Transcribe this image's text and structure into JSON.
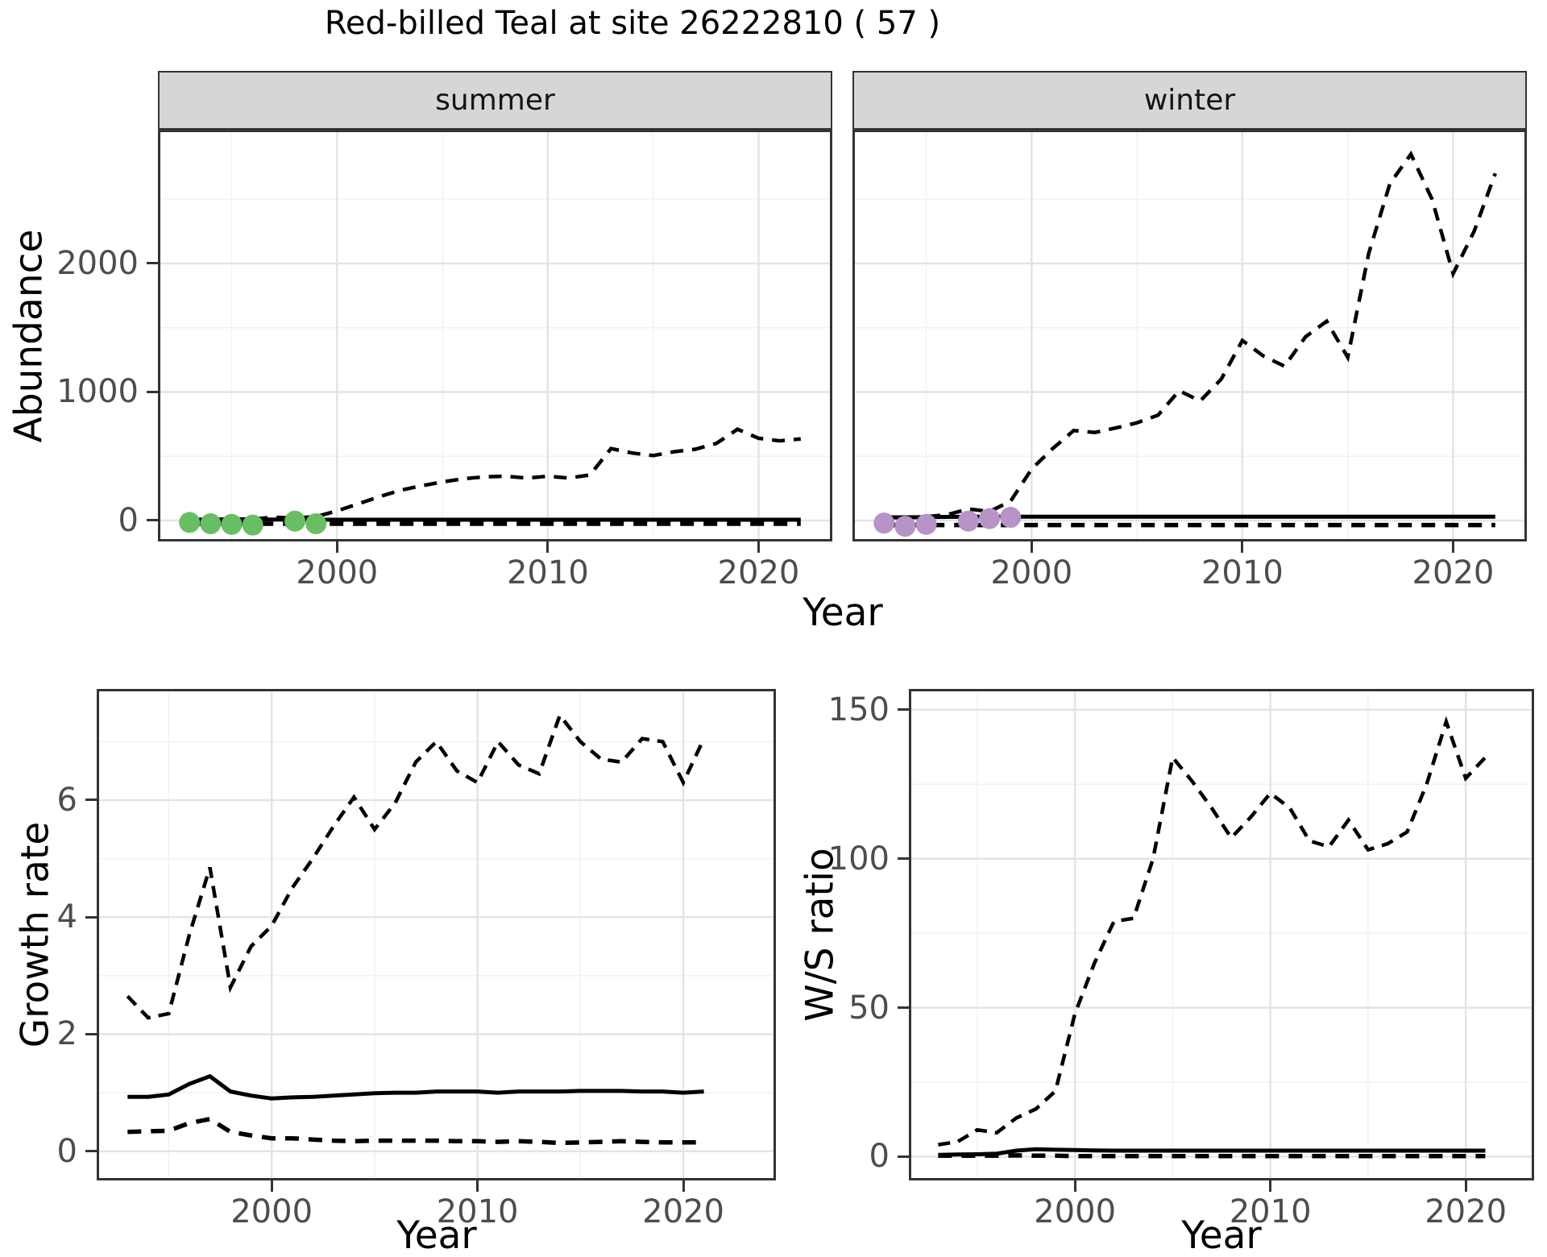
{
  "title": "Red-billed Teal at site 26222810 ( 57 )",
  "figures": {
    "top": {
      "ylab": "Abundance",
      "xlab": "Year",
      "facets": [
        {
          "strip": "summer"
        },
        {
          "strip": "winter"
        }
      ]
    },
    "growth": {
      "ylab": "Growth rate",
      "xlab": "Year"
    },
    "ratio": {
      "ylab": "W/S ratio",
      "xlab": "Year"
    }
  },
  "colors": {
    "summer_points": "#69be64",
    "winter_points": "#b694c7",
    "line": "#000000",
    "strip_bg": "#d6d6d6",
    "panel_border": "#333333",
    "grid_major": "#e4e4e4",
    "grid_minor": "#f2f2f2",
    "tick_text": "#4d4d4d"
  },
  "chart_data": [
    {
      "id": "abundance-summer",
      "type": "line",
      "facet": "summer",
      "xlabel": "Year",
      "ylabel": "Abundance",
      "xlim": [
        1991.5,
        2023.5
      ],
      "ylim": [
        -163,
        3040
      ],
      "xticks": [
        2000,
        2010,
        2020
      ],
      "yticks": [
        0,
        1000,
        2000
      ],
      "minor_x": [
        1995,
        2005,
        2015
      ],
      "minor_y": [
        500,
        1500,
        2500
      ],
      "grid": true,
      "legend": "none",
      "years": [
        1993,
        1994,
        1995,
        1996,
        1997,
        1998,
        1999,
        2000,
        2001,
        2002,
        2003,
        2004,
        2005,
        2006,
        2007,
        2008,
        2009,
        2010,
        2011,
        2012,
        2013,
        2014,
        2015,
        2016,
        2017,
        2018,
        2019,
        2020,
        2021,
        2022
      ],
      "series": [
        {
          "name": "lower_ci",
          "style": "dashed",
          "width": 5.5,
          "dash": "17 12",
          "values": [
            -25,
            -25,
            -25,
            -25,
            -25,
            -25,
            -25,
            -25,
            -25,
            -25,
            -25,
            -25,
            -25,
            -25,
            -25,
            -25,
            -25,
            -25,
            -25,
            -25,
            -25,
            -25,
            -25,
            -25,
            -25,
            -25,
            -25,
            -25,
            -25,
            -25
          ]
        },
        {
          "name": "median",
          "style": "solid",
          "width": 5,
          "dash": null,
          "values": [
            6,
            6,
            7,
            8,
            8,
            7,
            6,
            6,
            6,
            6,
            6,
            6,
            6,
            6,
            6,
            6,
            6,
            6,
            6,
            6,
            6,
            6,
            6,
            6,
            6,
            6,
            6,
            6,
            6,
            6
          ]
        },
        {
          "name": "upper_ci",
          "style": "dashed",
          "width": 4.5,
          "dash": "16 11",
          "values": [
            8,
            10,
            10,
            12,
            25,
            20,
            30,
            75,
            130,
            185,
            235,
            270,
            300,
            325,
            340,
            345,
            330,
            345,
            330,
            355,
            560,
            525,
            505,
            535,
            555,
            600,
            710,
            640,
            620,
            635
          ]
        }
      ],
      "points": {
        "name": "observed-summer-counts",
        "color": "#69be64",
        "r": 13,
        "x": [
          1993,
          1994,
          1995,
          1996,
          1998,
          1999
        ],
        "y": [
          -15,
          -25,
          -30,
          -35,
          -5,
          -25
        ]
      }
    },
    {
      "id": "abundance-winter",
      "type": "line",
      "facet": "winter",
      "xlabel": "Year",
      "ylabel": "Abundance",
      "xlim": [
        1991.5,
        2023.5
      ],
      "ylim": [
        -163,
        3040
      ],
      "xticks": [
        2000,
        2010,
        2020
      ],
      "yticks": [
        0,
        1000,
        2000
      ],
      "minor_x": [
        1995,
        2005,
        2015
      ],
      "minor_y": [
        500,
        1500,
        2500
      ],
      "grid": true,
      "legend": "none",
      "years": [
        1993,
        1994,
        1995,
        1996,
        1997,
        1998,
        1999,
        2000,
        2001,
        2002,
        2003,
        2004,
        2005,
        2006,
        2007,
        2008,
        2009,
        2010,
        2011,
        2012,
        2013,
        2014,
        2015,
        2016,
        2017,
        2018,
        2019,
        2020,
        2021,
        2022
      ],
      "series": [
        {
          "name": "lower_ci",
          "style": "dashed",
          "width": 5.5,
          "dash": "17 12",
          "values": [
            -35,
            -35,
            -35,
            -35,
            -35,
            -35,
            -35,
            -35,
            -35,
            -35,
            -35,
            -35,
            -35,
            -35,
            -35,
            -35,
            -35,
            -35,
            -35,
            -35,
            -35,
            -35,
            -35,
            -35,
            -35,
            -35,
            -35,
            -35,
            -35,
            -35
          ]
        },
        {
          "name": "median",
          "style": "solid",
          "width": 5,
          "dash": null,
          "values": [
            25,
            25,
            26,
            28,
            30,
            30,
            30,
            30,
            30,
            30,
            30,
            30,
            30,
            30,
            30,
            30,
            30,
            30,
            30,
            30,
            30,
            30,
            30,
            30,
            30,
            30,
            30,
            30,
            30,
            30
          ]
        },
        {
          "name": "upper_ci",
          "style": "dashed",
          "width": 4.5,
          "dash": "16 11",
          "values": [
            25,
            20,
            30,
            45,
            90,
            70,
            150,
            400,
            560,
            700,
            685,
            720,
            760,
            820,
            1010,
            930,
            1100,
            1400,
            1280,
            1200,
            1430,
            1550,
            1270,
            2080,
            2620,
            2850,
            2500,
            1920,
            2250,
            2700
          ]
        }
      ],
      "points": {
        "name": "observed-winter-counts",
        "color": "#b694c7",
        "r": 13,
        "x": [
          1993,
          1994,
          1995,
          1997,
          1998,
          1999
        ],
        "y": [
          -20,
          -45,
          -30,
          -5,
          15,
          25
        ]
      }
    },
    {
      "id": "growth-rate",
      "type": "line",
      "xlabel": "Year",
      "ylabel": "Growth rate",
      "xlim": [
        1991.5,
        2024.5
      ],
      "ylim": [
        -0.5,
        7.9
      ],
      "xticks": [
        2000,
        2010,
        2020
      ],
      "yticks": [
        0,
        2,
        4,
        6
      ],
      "minor_x": [
        1995,
        2005,
        2015
      ],
      "minor_y": [
        1,
        3,
        5,
        7
      ],
      "grid": true,
      "legend": "none",
      "years": [
        1993,
        1994,
        1995,
        1996,
        1997,
        1998,
        1999,
        2000,
        2001,
        2002,
        2003,
        2004,
        2005,
        2006,
        2007,
        2008,
        2009,
        2010,
        2011,
        2012,
        2013,
        2014,
        2015,
        2016,
        2017,
        2018,
        2019,
        2020,
        2021
      ],
      "series": [
        {
          "name": "lower_ci",
          "style": "dashed",
          "width": 5.5,
          "dash": "17 12",
          "values": [
            0.33,
            0.34,
            0.35,
            0.48,
            0.55,
            0.33,
            0.27,
            0.22,
            0.22,
            0.2,
            0.18,
            0.17,
            0.18,
            0.18,
            0.18,
            0.18,
            0.17,
            0.17,
            0.16,
            0.17,
            0.16,
            0.14,
            0.15,
            0.16,
            0.17,
            0.16,
            0.15,
            0.15,
            0.15
          ]
        },
        {
          "name": "median",
          "style": "solid",
          "width": 5,
          "dash": null,
          "values": [
            0.93,
            0.93,
            0.97,
            1.15,
            1.28,
            1.02,
            0.95,
            0.9,
            0.92,
            0.93,
            0.95,
            0.97,
            0.99,
            1.0,
            1.0,
            1.02,
            1.02,
            1.02,
            1.0,
            1.02,
            1.02,
            1.02,
            1.03,
            1.03,
            1.03,
            1.02,
            1.02,
            1.0,
            1.02
          ]
        },
        {
          "name": "upper_ci",
          "style": "dashed",
          "width": 4.5,
          "dash": "15 10",
          "values": [
            2.65,
            2.28,
            2.35,
            3.7,
            4.85,
            2.8,
            3.5,
            3.85,
            4.5,
            5.0,
            5.55,
            6.05,
            5.5,
            5.95,
            6.65,
            7.0,
            6.5,
            6.3,
            7.0,
            6.6,
            6.45,
            7.45,
            7.0,
            6.7,
            6.65,
            7.05,
            7.0,
            6.3,
            7.05
          ]
        }
      ],
      "points": null
    },
    {
      "id": "ws-ratio",
      "type": "line",
      "xlabel": "Year",
      "ylabel": "W/S ratio",
      "xlim": [
        1991.5,
        2023.5
      ],
      "ylim": [
        -8,
        157
      ],
      "xticks": [
        2000,
        2010,
        2020
      ],
      "yticks": [
        0,
        50,
        100,
        150
      ],
      "minor_x": [
        1995,
        2005,
        2015
      ],
      "minor_y": [
        25,
        75,
        125
      ],
      "grid": true,
      "legend": "none",
      "years": [
        1993,
        1994,
        1995,
        1996,
        1997,
        1998,
        1999,
        2000,
        2001,
        2002,
        2003,
        2004,
        2005,
        2006,
        2007,
        2008,
        2009,
        2010,
        2011,
        2012,
        2013,
        2014,
        2015,
        2016,
        2017,
        2018,
        2019,
        2020,
        2021
      ],
      "series": [
        {
          "name": "lower_ci",
          "style": "dashed",
          "width": 5.5,
          "dash": "17 12",
          "values": [
            0.3,
            0.3,
            0.3,
            0.3,
            0.4,
            0.3,
            0.3,
            0.2,
            0.2,
            0.2,
            0.2,
            0.2,
            0.2,
            0.2,
            0.2,
            0.2,
            0.2,
            0.2,
            0.2,
            0.2,
            0.2,
            0.2,
            0.2,
            0.2,
            0.2,
            0.2,
            0.2,
            0.2,
            0.2
          ]
        },
        {
          "name": "median",
          "style": "solid",
          "width": 5,
          "dash": null,
          "values": [
            0.6,
            0.7,
            0.8,
            1.0,
            2.0,
            2.5,
            2.3,
            2.2,
            2.1,
            2.0,
            2.0,
            2.0,
            2.0,
            2.0,
            2.0,
            2.0,
            2.0,
            2.0,
            2.0,
            2.0,
            2.0,
            2.0,
            2.0,
            2.0,
            2.0,
            2.0,
            2.0,
            2.0,
            2.0
          ]
        },
        {
          "name": "upper_ci",
          "style": "dashed",
          "width": 4.5,
          "dash": "15 10",
          "values": [
            4,
            5,
            9,
            8,
            13,
            16,
            22,
            48,
            65,
            79,
            80,
            100,
            134,
            126,
            117,
            107,
            114,
            122,
            117,
            106,
            104,
            113,
            103,
            105,
            109,
            125,
            146,
            127,
            134
          ]
        }
      ],
      "points": null
    }
  ]
}
